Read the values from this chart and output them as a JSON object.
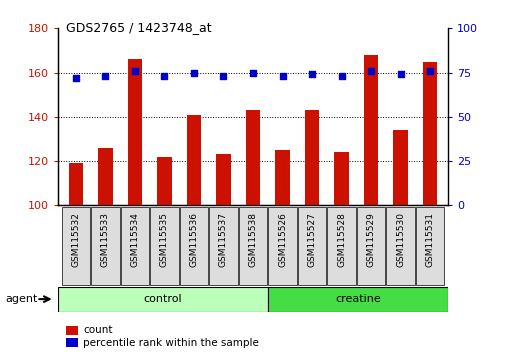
{
  "title": "GDS2765 / 1423748_at",
  "samples": [
    "GSM115532",
    "GSM115533",
    "GSM115534",
    "GSM115535",
    "GSM115536",
    "GSM115537",
    "GSM115538",
    "GSM115526",
    "GSM115527",
    "GSM115528",
    "GSM115529",
    "GSM115530",
    "GSM115531"
  ],
  "counts": [
    119,
    126,
    166,
    122,
    141,
    123,
    143,
    125,
    143,
    124,
    168,
    134,
    165
  ],
  "percentiles": [
    72,
    73,
    76,
    73,
    75,
    73,
    75,
    73,
    74,
    73,
    76,
    74,
    76
  ],
  "groups": [
    {
      "label": "control",
      "start": 0,
      "end": 7,
      "color": "#bbffbb"
    },
    {
      "label": "creatine",
      "start": 7,
      "end": 13,
      "color": "#44dd44"
    }
  ],
  "ylim_left": [
    100,
    180
  ],
  "ylim_right": [
    0,
    100
  ],
  "yticks_left": [
    100,
    120,
    140,
    160,
    180
  ],
  "yticks_right": [
    0,
    25,
    50,
    75,
    100
  ],
  "bar_color": "#cc1100",
  "dot_color": "#0000cc",
  "bar_width": 0.5,
  "agent_label": "agent",
  "legend_count_label": "count",
  "legend_pct_label": "percentile rank within the sample",
  "grid_color": "#000000",
  "axis_label_color_left": "#cc1100",
  "axis_label_color_right": "#0000cc",
  "tick_label_bg": "#dddddd"
}
